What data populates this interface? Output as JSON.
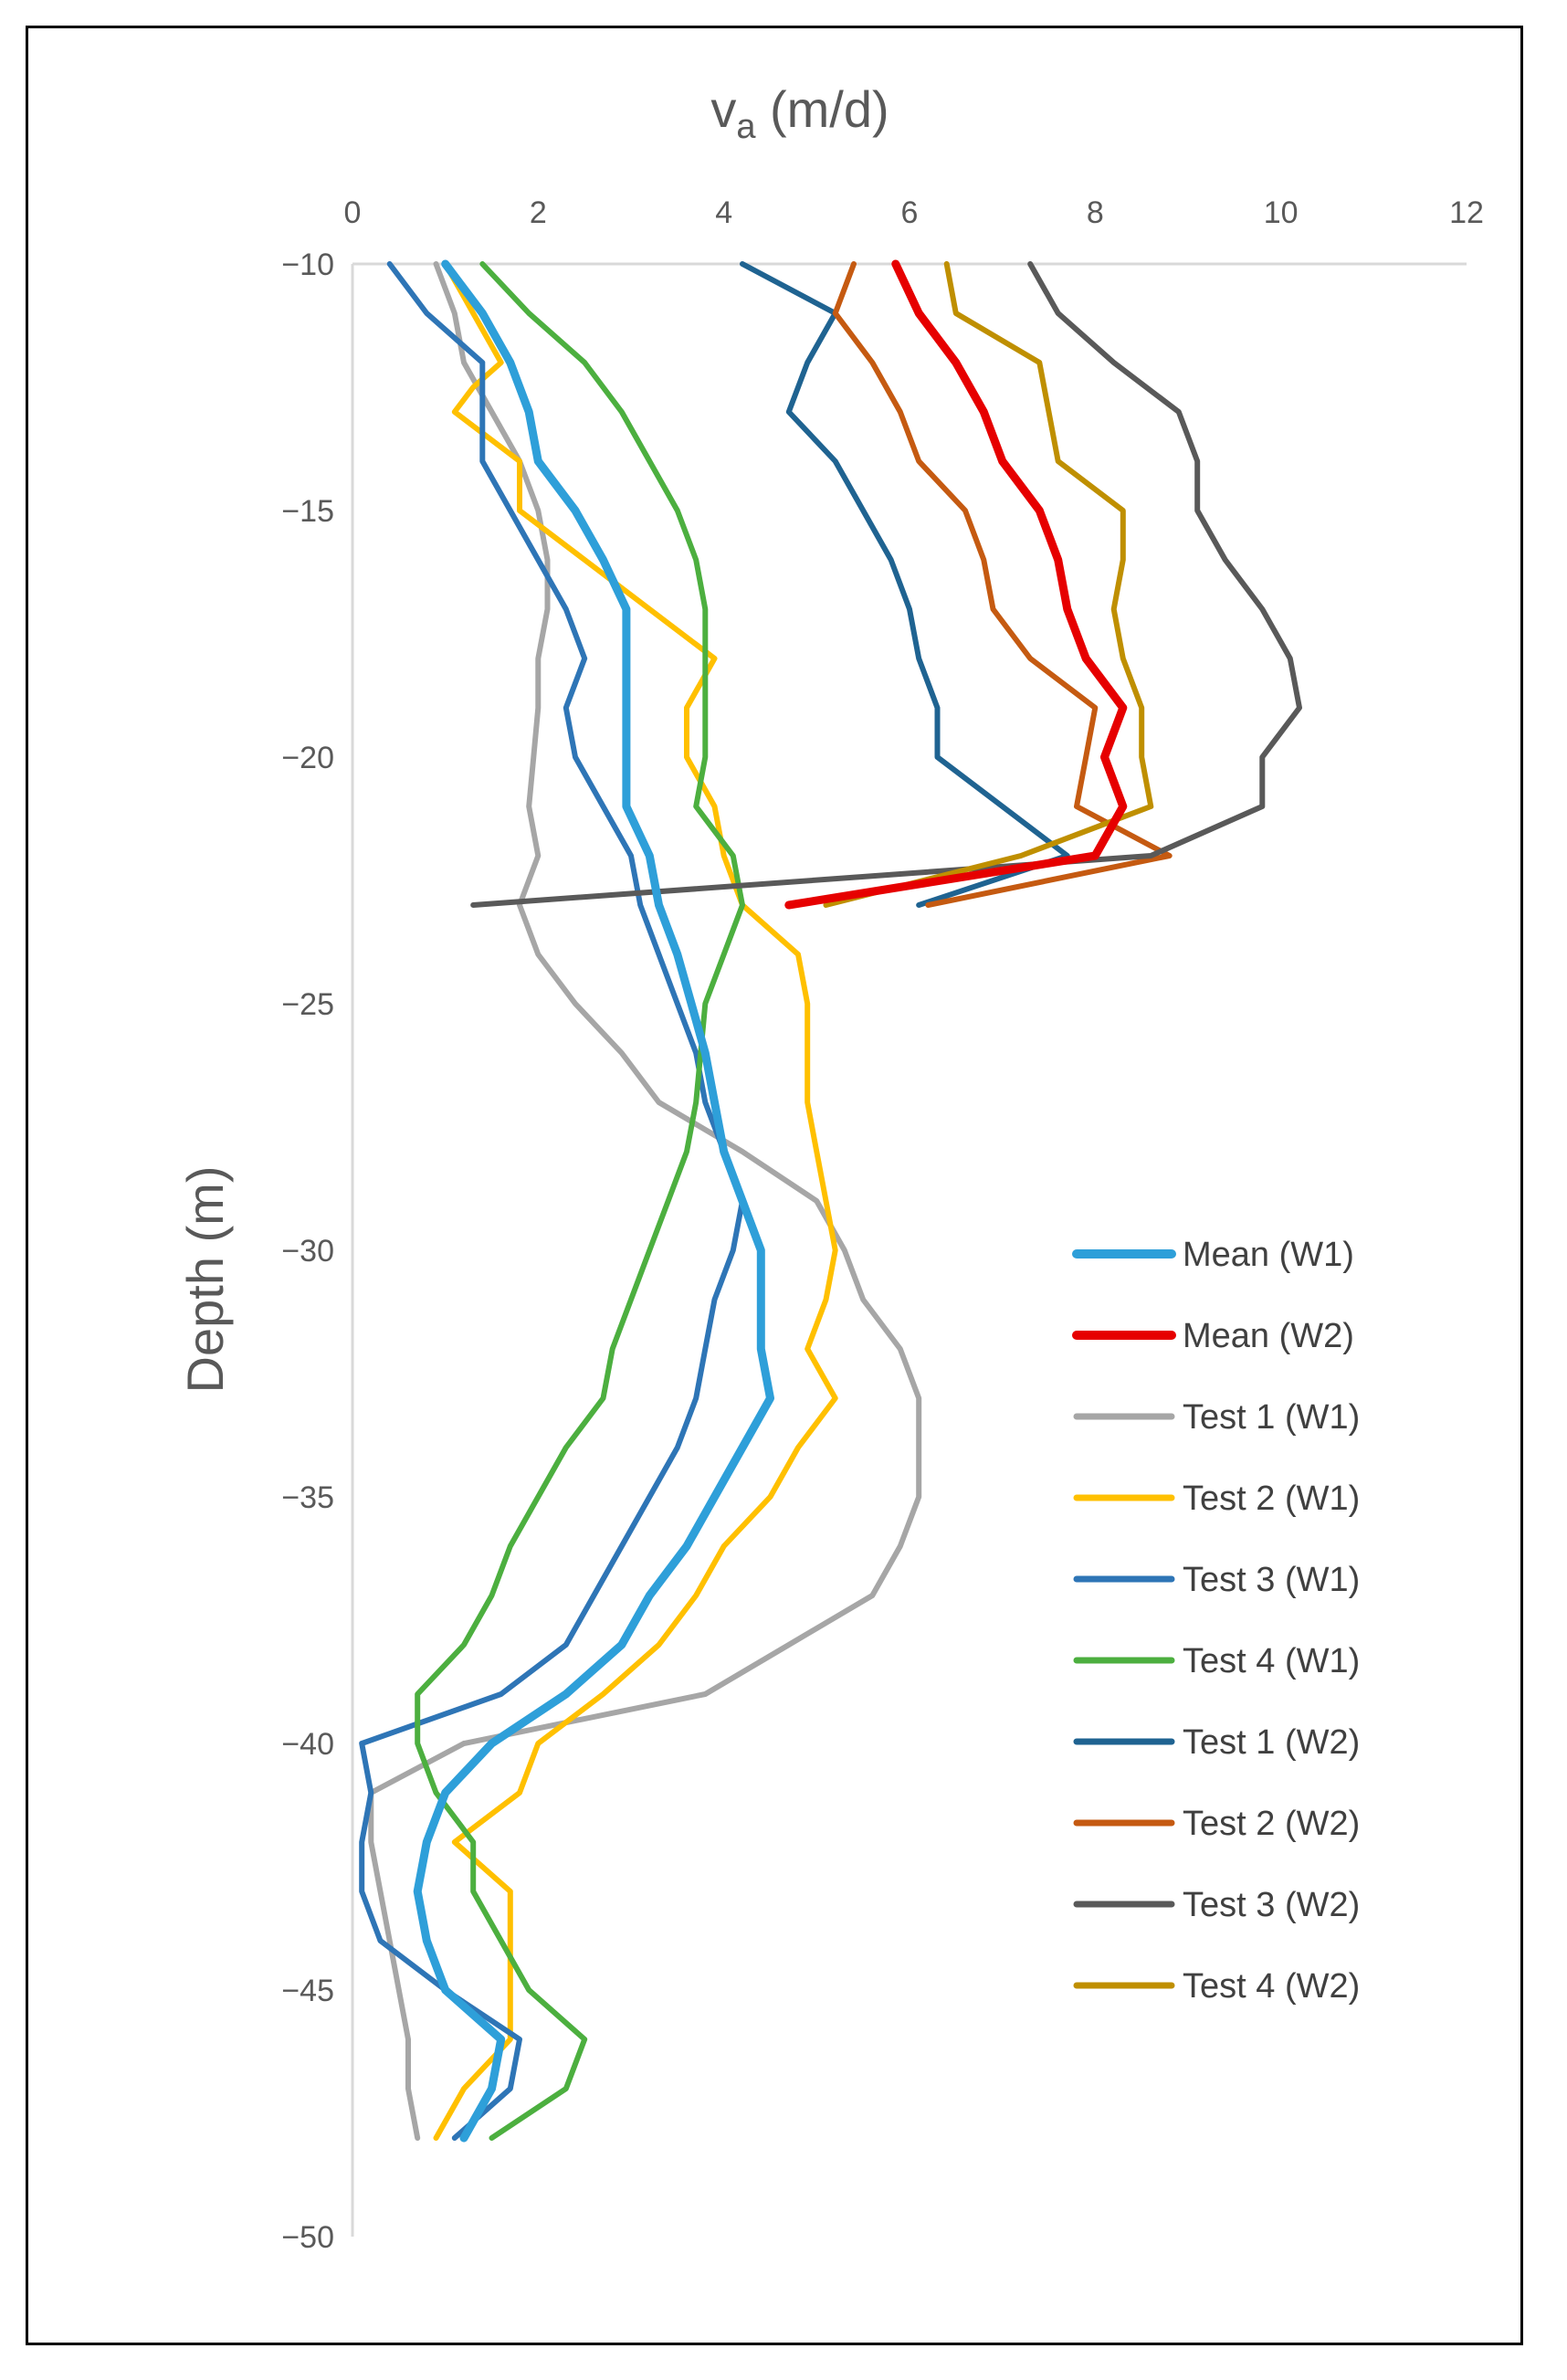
{
  "chart_data": {
    "type": "line",
    "title": "",
    "xlabel": "v",
    "xlabel_sub": "a",
    "xlabel_suffix": " (m/d)",
    "ylabel": "Depth (m)",
    "xlim": [
      0,
      12
    ],
    "ylim": [
      -50,
      -10
    ],
    "xticks": [
      0,
      2,
      4,
      6,
      8,
      10,
      12
    ],
    "yticks": [
      -10,
      -15,
      -20,
      -25,
      -30,
      -35,
      -40,
      -45,
      -50
    ],
    "x_tick_labels": [
      "0",
      "2",
      "4",
      "6",
      "8",
      "10",
      "12"
    ],
    "y_tick_labels": [
      "−10",
      "−15",
      "−20",
      "−25",
      "−30",
      "−35",
      "−40",
      "−45",
      "−50"
    ],
    "x_axis_position": "top",
    "grid": false,
    "legend_position": "right",
    "series": [
      {
        "name": "Mean (W1)",
        "color": "#2E9FD9",
        "width": 9,
        "depth": [
          -10,
          -11,
          -12,
          -13,
          -14,
          -15,
          -16,
          -17,
          -18,
          -19,
          -20,
          -21,
          -22,
          -23,
          -24,
          -25,
          -26,
          -27,
          -28,
          -29,
          -30,
          -31,
          -32,
          -33,
          -34,
          -35,
          -36,
          -37,
          -38,
          -39,
          -40,
          -41,
          -42,
          -43,
          -44,
          -45,
          -46,
          -47,
          -48
        ],
        "v": [
          1.0,
          1.4,
          1.7,
          1.9,
          2.0,
          2.4,
          2.7,
          2.95,
          2.95,
          2.95,
          2.95,
          2.95,
          3.2,
          3.3,
          3.5,
          3.65,
          3.8,
          3.9,
          4.0,
          4.2,
          4.4,
          4.4,
          4.4,
          4.5,
          4.2,
          3.9,
          3.6,
          3.2,
          2.9,
          2.3,
          1.5,
          1.0,
          0.8,
          0.7,
          0.8,
          1.0,
          1.6,
          1.5,
          1.2
        ]
      },
      {
        "name": "Mean (W2)",
        "color": "#E60000",
        "width": 9,
        "depth": [
          -10,
          -11,
          -12,
          -13,
          -14,
          -15,
          -16,
          -17,
          -18,
          -19,
          -20,
          -21,
          -22,
          -23
        ],
        "v": [
          5.85,
          6.1,
          6.5,
          6.8,
          7.0,
          7.4,
          7.6,
          7.7,
          7.9,
          8.3,
          8.1,
          8.3,
          8.0,
          4.7
        ]
      },
      {
        "name": "Test 1 (W1)",
        "color": "#A6A6A6",
        "width": 6,
        "depth": [
          -10,
          -11,
          -12,
          -13,
          -14,
          -15,
          -16,
          -17,
          -18,
          -19,
          -20,
          -21,
          -22,
          -23,
          -24,
          -25,
          -26,
          -27,
          -28,
          -29,
          -30,
          -31,
          -32,
          -33,
          -34,
          -35,
          -36,
          -37,
          -38,
          -39,
          -40,
          -41,
          -42,
          -43,
          -44,
          -45,
          -46,
          -47,
          -48
        ],
        "v": [
          0.9,
          1.1,
          1.2,
          1.5,
          1.8,
          2.0,
          2.1,
          2.1,
          2.0,
          2.0,
          1.95,
          1.9,
          2.0,
          1.8,
          2.0,
          2.4,
          2.9,
          3.3,
          4.2,
          5.0,
          5.3,
          5.5,
          5.9,
          6.1,
          6.1,
          6.1,
          5.9,
          5.6,
          4.7,
          3.8,
          1.2,
          0.2,
          0.2,
          0.3,
          0.4,
          0.5,
          0.6,
          0.6,
          0.7
        ]
      },
      {
        "name": "Test 2 (W1)",
        "color": "#FFC000",
        "width": 6,
        "depth": [
          -10,
          -11,
          -12,
          -12.5,
          -13,
          -14,
          -15,
          -16,
          -17,
          -18,
          -19,
          -20,
          -21,
          -22,
          -23,
          -24,
          -25,
          -26,
          -27,
          -28,
          -29,
          -30,
          -31,
          -32,
          -33,
          -34,
          -35,
          -36,
          -37,
          -38,
          -39,
          -40,
          -41,
          -42,
          -43,
          -44,
          -45,
          -46,
          -47,
          -48
        ],
        "v": [
          1.0,
          1.3,
          1.6,
          1.3,
          1.1,
          1.8,
          1.8,
          2.5,
          3.2,
          3.9,
          3.6,
          3.6,
          3.9,
          4.0,
          4.2,
          4.8,
          4.9,
          4.9,
          4.9,
          5.0,
          5.1,
          5.2,
          5.1,
          4.9,
          5.2,
          4.8,
          4.5,
          4.0,
          3.7,
          3.3,
          2.7,
          2.0,
          1.8,
          1.1,
          1.7,
          1.7,
          1.7,
          1.7,
          1.2,
          0.9
        ]
      },
      {
        "name": "Test 3 (W1)",
        "color": "#2E75B6",
        "width": 6,
        "depth": [
          -10,
          -11,
          -12,
          -13,
          -14,
          -15,
          -16,
          -17,
          -18,
          -19,
          -20,
          -21,
          -22,
          -23,
          -24,
          -25,
          -26,
          -27,
          -28,
          -29,
          -30,
          -31,
          -32,
          -33,
          -34,
          -35,
          -36,
          -37,
          -38,
          -39,
          -40,
          -41,
          -42,
          -43,
          -44,
          -45,
          -46,
          -47,
          -48
        ],
        "v": [
          0.4,
          0.8,
          1.4,
          1.4,
          1.4,
          1.7,
          2.0,
          2.3,
          2.5,
          2.3,
          2.4,
          2.7,
          3.0,
          3.1,
          3.3,
          3.5,
          3.7,
          3.8,
          4.0,
          4.2,
          4.1,
          3.9,
          3.8,
          3.7,
          3.5,
          3.2,
          2.9,
          2.6,
          2.3,
          1.6,
          0.1,
          0.2,
          0.1,
          0.1,
          0.3,
          1.0,
          1.8,
          1.7,
          1.1
        ]
      },
      {
        "name": "Test 4 (W1)",
        "color": "#4CAF3F",
        "width": 6,
        "depth": [
          -10,
          -11,
          -12,
          -13,
          -14,
          -15,
          -16,
          -17,
          -18,
          -19,
          -20,
          -21,
          -22,
          -23,
          -24,
          -25,
          -26,
          -27,
          -28,
          -29,
          -30,
          -31,
          -32,
          -33,
          -34,
          -35,
          -36,
          -37,
          -38,
          -39,
          -40,
          -41,
          -42,
          -43,
          -44,
          -45,
          -46,
          -47,
          -48
        ],
        "v": [
          1.4,
          1.9,
          2.5,
          2.9,
          3.2,
          3.5,
          3.7,
          3.8,
          3.8,
          3.8,
          3.8,
          3.7,
          4.1,
          4.2,
          4.0,
          3.8,
          3.75,
          3.7,
          3.6,
          3.4,
          3.2,
          3.0,
          2.8,
          2.7,
          2.3,
          2.0,
          1.7,
          1.5,
          1.2,
          0.7,
          0.7,
          0.9,
          1.3,
          1.3,
          1.6,
          1.9,
          2.5,
          2.3,
          1.5
        ]
      },
      {
        "name": "Test 1 (W2)",
        "color": "#1F6391",
        "width": 6,
        "depth": [
          -10,
          -11,
          -12,
          -13,
          -14,
          -15,
          -16,
          -17,
          -18,
          -19,
          -20,
          -21,
          -22,
          -23
        ],
        "v": [
          4.2,
          5.2,
          4.9,
          4.7,
          5.2,
          5.5,
          5.8,
          6.0,
          6.1,
          6.3,
          6.3,
          7.0,
          7.7,
          6.1
        ]
      },
      {
        "name": "Test 2 (W2)",
        "color": "#C55A11",
        "width": 6,
        "depth": [
          -10,
          -11,
          -12,
          -13,
          -14,
          -15,
          -16,
          -17,
          -18,
          -19,
          -20,
          -21,
          -22,
          -23
        ],
        "v": [
          5.4,
          5.2,
          5.6,
          5.9,
          6.1,
          6.6,
          6.8,
          6.9,
          7.3,
          8.0,
          7.9,
          7.8,
          8.8,
          6.2
        ]
      },
      {
        "name": "Test 3 (W2)",
        "color": "#595959",
        "width": 6,
        "depth": [
          -10,
          -11,
          -12,
          -13,
          -14,
          -15,
          -16,
          -17,
          -18,
          -19,
          -20,
          -21,
          -22,
          -23
        ],
        "v": [
          7.3,
          7.6,
          8.2,
          8.9,
          9.1,
          9.1,
          9.4,
          9.8,
          10.1,
          10.2,
          9.8,
          9.8,
          8.6,
          1.3
        ]
      },
      {
        "name": "Test 4 (W2)",
        "color": "#BF8F00",
        "width": 6,
        "depth": [
          -10,
          -11,
          -12,
          -13,
          -14,
          -15,
          -16,
          -17,
          -18,
          -19,
          -20,
          -21,
          -22,
          -23
        ],
        "v": [
          6.4,
          6.5,
          7.4,
          7.5,
          7.6,
          8.3,
          8.3,
          8.2,
          8.3,
          8.5,
          8.5,
          8.6,
          7.2,
          5.1
        ]
      }
    ]
  }
}
